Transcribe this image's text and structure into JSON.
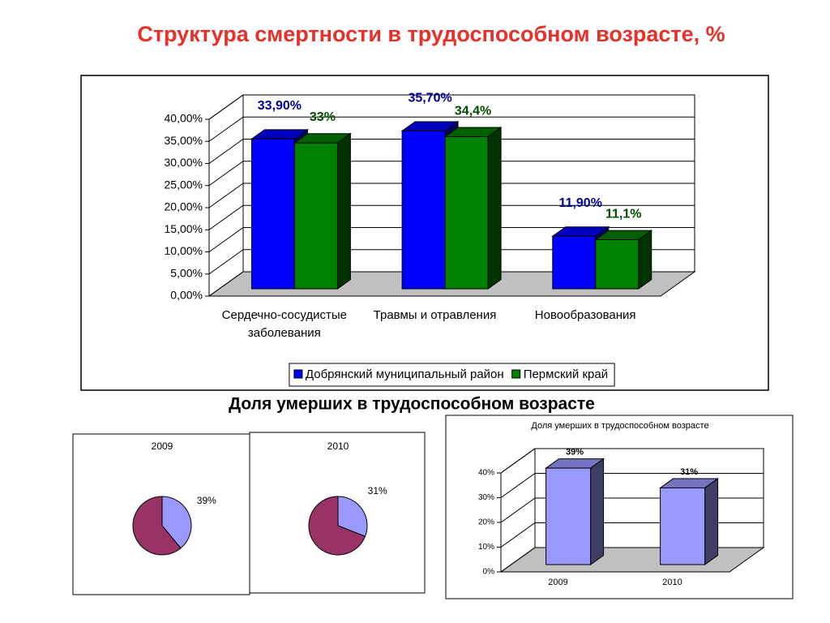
{
  "title": "Структура смертности в трудоспособном возрасте,  %",
  "subtitle": "Доля умерших в трудоспособном возрасте",
  "chart_data": [
    {
      "type": "bar",
      "categories": [
        "Сердечно-сосудистые заболевания",
        "Травмы и отравления",
        "Новообразования"
      ],
      "series": [
        {
          "name": "Добрянский муниципальный район",
          "color": "#0000ff",
          "values": [
            33.9,
            35.7,
            11.9
          ],
          "value_labels": [
            "33,90%",
            "35,70%",
            "11,90%"
          ]
        },
        {
          "name": "Пермский край",
          "color": "#008000",
          "values": [
            33,
            34.4,
            11.1
          ],
          "value_labels": [
            "33%",
            "34,4%",
            "11,1%"
          ]
        }
      ],
      "ylim": [
        0,
        40
      ],
      "yticks": [
        {
          "value": 0,
          "label": "0,00%"
        },
        {
          "value": 5,
          "label": "5,00%"
        },
        {
          "value": 10,
          "label": "10,00%"
        },
        {
          "value": 15,
          "label": "15,00%"
        },
        {
          "value": 20,
          "label": "20,00%"
        },
        {
          "value": 25,
          "label": "25,00%"
        },
        {
          "value": 30,
          "label": "30,00%"
        },
        {
          "value": 35,
          "label": "35,00%"
        },
        {
          "value": 40,
          "label": "40,00%"
        }
      ],
      "grid": true,
      "legend": "bottom"
    },
    {
      "type": "pie",
      "title": "2009",
      "values": [
        39,
        61
      ],
      "value_labels": [
        "39%",
        null
      ],
      "colors": [
        "#9999ff",
        "#993366"
      ]
    },
    {
      "type": "pie",
      "title": "2010",
      "values": [
        31,
        69
      ],
      "value_labels": [
        "31%",
        null
      ],
      "colors": [
        "#9999ff",
        "#993366"
      ]
    },
    {
      "type": "bar",
      "title": "Доля умерших в трудоспособном возрасте",
      "categories": [
        "2009",
        "2010"
      ],
      "series": [
        {
          "color": "#9999ff",
          "values": [
            39,
            31
          ],
          "value_labels": [
            "39%",
            "31%"
          ]
        }
      ],
      "ylim": [
        0,
        40
      ],
      "yticks": [
        {
          "value": 0,
          "label": "0%"
        },
        {
          "value": 10,
          "label": "10%"
        },
        {
          "value": 20,
          "label": "20%"
        },
        {
          "value": 30,
          "label": "30%"
        },
        {
          "value": 40,
          "label": "40%"
        }
      ],
      "grid": true
    }
  ]
}
